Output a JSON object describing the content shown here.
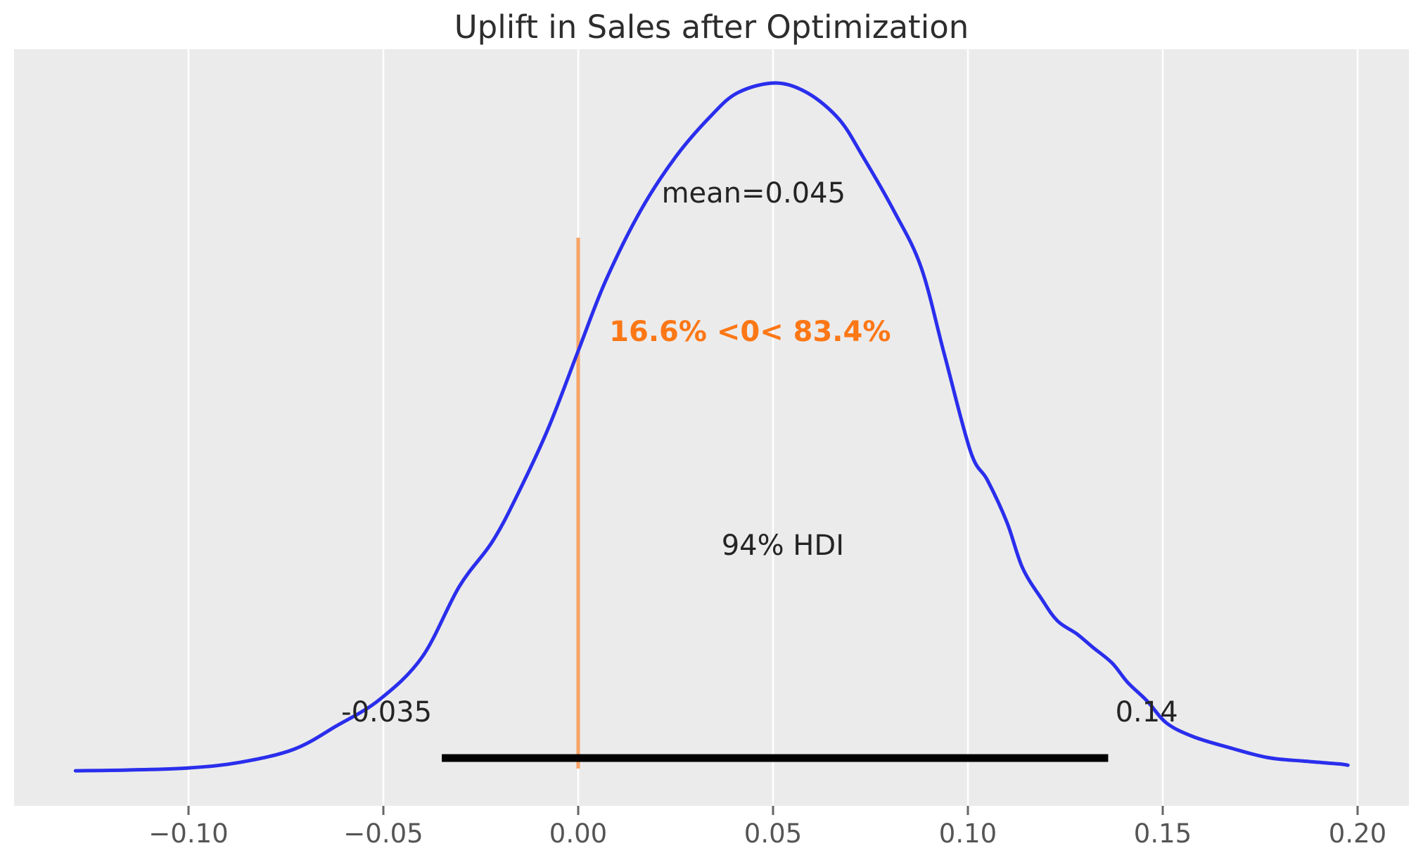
{
  "chart_data": {
    "type": "area",
    "title": "Uplift in Sales after Optimization",
    "xlabel": "",
    "ylabel": "",
    "legend": "none",
    "grid": "vertical white gridlines on gray panel",
    "xlim": [
      -0.1444,
      0.2132
    ],
    "x_ticks": [
      {
        "value": -0.1,
        "label": "−0.10"
      },
      {
        "value": -0.05,
        "label": "−0.05"
      },
      {
        "value": 0.0,
        "label": "0.00"
      },
      {
        "value": 0.05,
        "label": "0.05"
      },
      {
        "value": 0.1,
        "label": "0.10"
      },
      {
        "value": 0.15,
        "label": "0.15"
      },
      {
        "value": 0.2,
        "label": "0.20"
      }
    ],
    "annotations": {
      "mean_label": "mean=0.045",
      "mean_value": 0.045,
      "ref_line_value": 0,
      "ref_probability_label": "16.6% <0< 83.4%",
      "pct_below_ref": 16.6,
      "pct_above_ref": 83.4,
      "hdi_label": "94% HDI",
      "hdi_percent": 94,
      "hdi_lower": -0.035,
      "hdi_upper": 0.14,
      "hdi_line_upper_end": 0.136,
      "hdi_lower_label": "-0.035",
      "hdi_upper_label": "0.14"
    },
    "density_curve": {
      "x": [
        -0.129,
        -0.116,
        -0.1,
        -0.087,
        -0.073,
        -0.062,
        -0.051,
        -0.04,
        -0.0305,
        -0.022,
        -0.0153,
        -0.0076,
        0.0,
        0.007,
        0.016,
        0.025,
        0.034,
        0.041,
        0.0507,
        0.059,
        0.067,
        0.073,
        0.081,
        0.088,
        0.094,
        0.1007,
        0.105,
        0.11,
        0.114,
        0.119,
        0.123,
        0.128,
        0.132,
        0.137,
        0.141,
        0.146,
        0.151,
        0.158,
        0.168,
        0.177,
        0.186,
        0.195,
        0.1975
      ],
      "height_normalized": [
        0.004,
        0.005,
        0.008,
        0.016,
        0.035,
        0.069,
        0.107,
        0.169,
        0.271,
        0.336,
        0.407,
        0.501,
        0.612,
        0.713,
        0.815,
        0.893,
        0.952,
        0.986,
        1.0,
        0.985,
        0.947,
        0.894,
        0.815,
        0.733,
        0.606,
        0.466,
        0.425,
        0.364,
        0.298,
        0.252,
        0.221,
        0.202,
        0.183,
        0.16,
        0.132,
        0.105,
        0.073,
        0.053,
        0.036,
        0.023,
        0.018,
        0.014,
        0.012
      ]
    },
    "colors": {
      "curve": "#2a2eec",
      "ref_line": "#fc7715",
      "ref_text": "#fc7715",
      "hdi_line": "#000000",
      "panel_bg": "#ebebeb",
      "gridline": "#ffffff",
      "text": "#242424",
      "title_text": "#2d2d2d",
      "tick_text": "#555555",
      "tick_mark": "#666666",
      "outer_bg": "#ffffff"
    }
  }
}
